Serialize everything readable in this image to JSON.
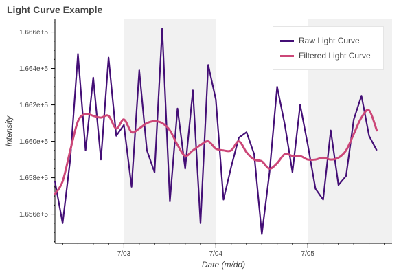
{
  "chart_data": {
    "type": "line",
    "title": "Light Curve Example",
    "xlabel": "Date (m/dd)",
    "ylabel": "Intensity",
    "x_ticks": [
      "7/03",
      "7/04",
      "7/05"
    ],
    "y_ticks": [
      "1.656e+5",
      "1.658e+5",
      "1.660e+5",
      "1.662e+5",
      "1.664e+5",
      "1.666e+5"
    ],
    "y_tick_values": [
      165600,
      165800,
      166000,
      166200,
      166400,
      166600
    ],
    "xlim": [
      "2023-07-02T06:00",
      "2023-07-05T22:00"
    ],
    "ylim": [
      165440,
      166670
    ],
    "legend_position": "top-right",
    "shaded_bands": [
      [
        "2023-07-03T00:00",
        "2023-07-04T00:00"
      ],
      [
        "2023-07-05T00:00",
        "2023-07-05T22:00"
      ]
    ],
    "series": [
      {
        "name": "Raw Light Curve",
        "color": "#440f76",
        "x": [
          "2023-07-02T06:00",
          "2023-07-02T08:00",
          "2023-07-02T10:00",
          "2023-07-02T12:00",
          "2023-07-02T14:00",
          "2023-07-02T16:00",
          "2023-07-02T18:00",
          "2023-07-02T20:00",
          "2023-07-02T22:00",
          "2023-07-03T00:00",
          "2023-07-03T02:00",
          "2023-07-03T04:00",
          "2023-07-03T06:00",
          "2023-07-03T08:00",
          "2023-07-03T10:00",
          "2023-07-03T12:00",
          "2023-07-03T14:00",
          "2023-07-03T16:00",
          "2023-07-03T18:00",
          "2023-07-03T20:00",
          "2023-07-03T22:00",
          "2023-07-04T00:00",
          "2023-07-04T02:00",
          "2023-07-04T04:00",
          "2023-07-04T06:00",
          "2023-07-04T08:00",
          "2023-07-04T10:00",
          "2023-07-04T12:00",
          "2023-07-04T14:00",
          "2023-07-04T16:00",
          "2023-07-04T18:00",
          "2023-07-04T20:00",
          "2023-07-04T22:00",
          "2023-07-05T00:00",
          "2023-07-05T02:00",
          "2023-07-05T04:00",
          "2023-07-05T06:00",
          "2023-07-05T08:00",
          "2023-07-05T10:00",
          "2023-07-05T12:00",
          "2023-07-05T14:00",
          "2023-07-05T16:00",
          "2023-07-05T18:00"
        ],
        "values": [
          165780,
          165550,
          165900,
          166480,
          165950,
          166350,
          165900,
          166460,
          166030,
          166090,
          165750,
          166390,
          165950,
          165830,
          166620,
          165670,
          166180,
          165850,
          166280,
          165550,
          166420,
          166230,
          165680,
          165860,
          166020,
          166050,
          165930,
          165490,
          165830,
          166300,
          166090,
          165830,
          166200,
          165980,
          165740,
          165680,
          166060,
          165760,
          165810,
          166120,
          166250,
          166030,
          165950
        ]
      },
      {
        "name": "Filtered Light Curve",
        "color": "#cc4778",
        "x": [
          "2023-07-02T06:00",
          "2023-07-02T08:00",
          "2023-07-02T10:00",
          "2023-07-02T12:00",
          "2023-07-02T14:00",
          "2023-07-02T16:00",
          "2023-07-02T18:00",
          "2023-07-02T20:00",
          "2023-07-02T22:00",
          "2023-07-03T00:00",
          "2023-07-03T02:00",
          "2023-07-03T04:00",
          "2023-07-03T06:00",
          "2023-07-03T08:00",
          "2023-07-03T10:00",
          "2023-07-03T12:00",
          "2023-07-03T14:00",
          "2023-07-03T16:00",
          "2023-07-03T18:00",
          "2023-07-03T20:00",
          "2023-07-03T22:00",
          "2023-07-04T00:00",
          "2023-07-04T02:00",
          "2023-07-04T04:00",
          "2023-07-04T06:00",
          "2023-07-04T08:00",
          "2023-07-04T10:00",
          "2023-07-04T12:00",
          "2023-07-04T14:00",
          "2023-07-04T16:00",
          "2023-07-04T18:00",
          "2023-07-04T20:00",
          "2023-07-04T22:00",
          "2023-07-05T00:00",
          "2023-07-05T02:00",
          "2023-07-05T04:00",
          "2023-07-05T06:00",
          "2023-07-05T08:00",
          "2023-07-05T10:00",
          "2023-07-05T12:00",
          "2023-07-05T14:00",
          "2023-07-05T16:00",
          "2023-07-05T18:00"
        ],
        "values": [
          165710,
          165780,
          165950,
          166110,
          166150,
          166140,
          166130,
          166140,
          166070,
          166120,
          166050,
          166070,
          166100,
          166110,
          166100,
          166060,
          165980,
          165920,
          165950,
          165980,
          166000,
          165960,
          165950,
          165950,
          166000,
          165940,
          165900,
          165890,
          165850,
          165880,
          165930,
          165920,
          165920,
          165900,
          165900,
          165910,
          165900,
          165910,
          165950,
          166040,
          166130,
          166170,
          166060
        ]
      }
    ]
  }
}
